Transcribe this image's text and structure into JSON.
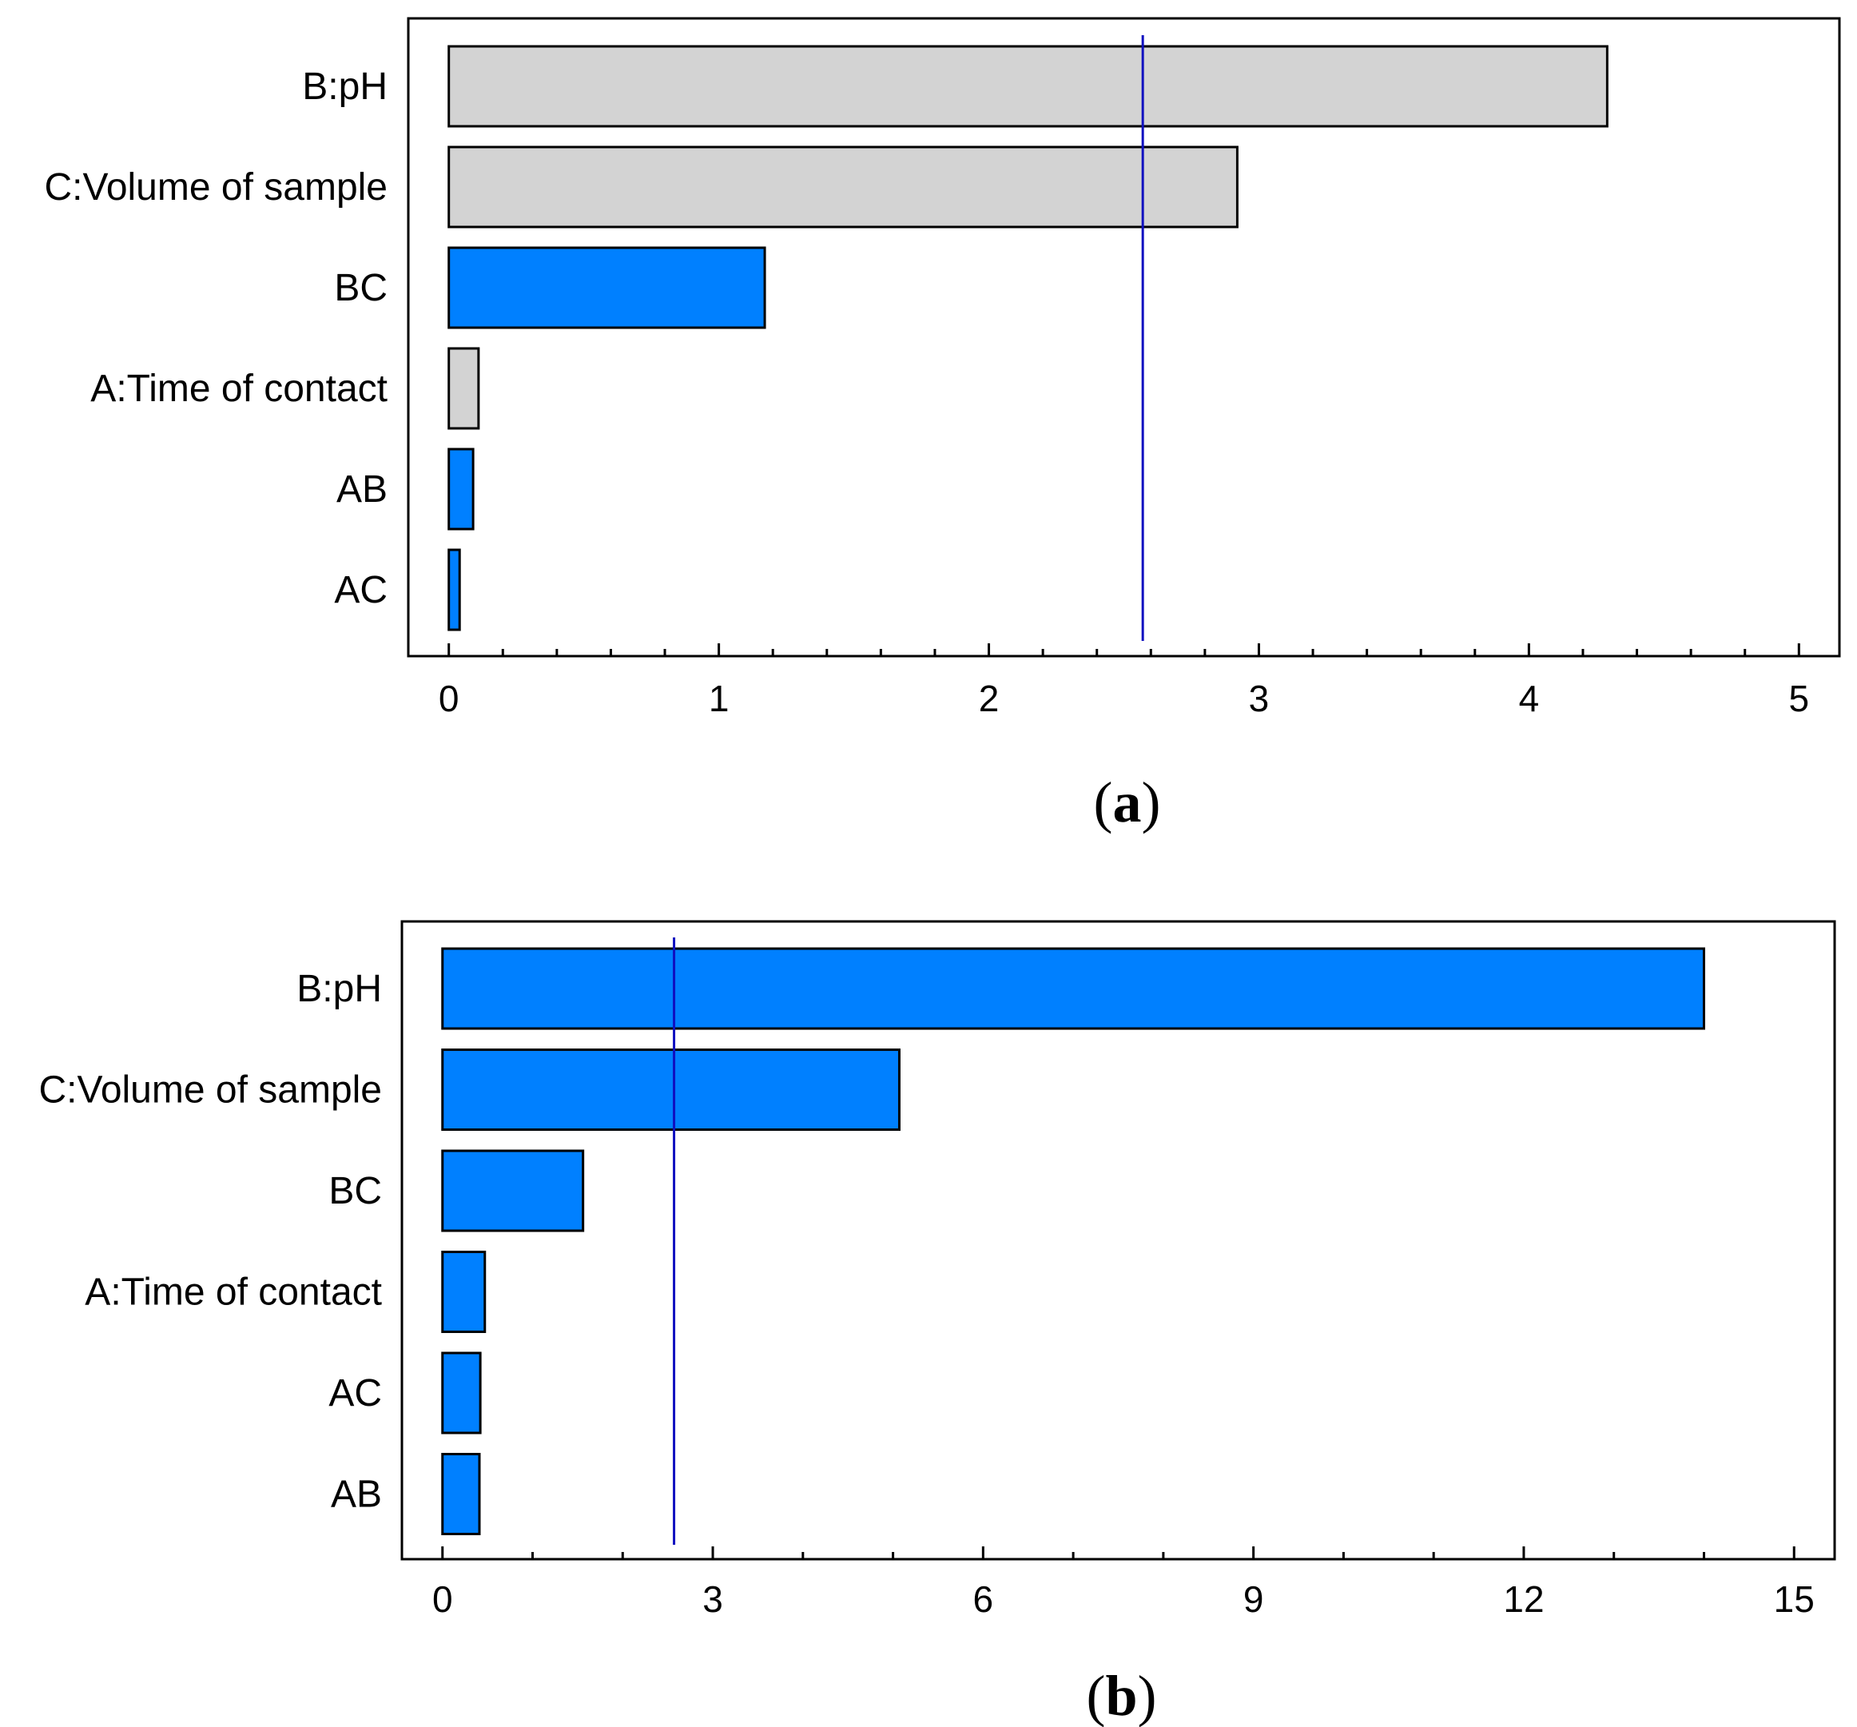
{
  "colors": {
    "positive": "#0080ff",
    "negative": "#d3d3d3",
    "reference_line": "#1010c0",
    "frame": "#000000"
  },
  "chart_data": [
    {
      "type": "bar",
      "orientation": "horizontal",
      "caption_letter": "a",
      "categories": [
        "B:pH",
        "C:Volume of sample",
        "BC",
        "A:Time of contact",
        "AB",
        "AC"
      ],
      "values": [
        4.29,
        2.92,
        1.17,
        0.11,
        0.09,
        0.04
      ],
      "signs": [
        "negative",
        "negative",
        "positive",
        "negative",
        "positive",
        "positive"
      ],
      "reference_value": 2.57,
      "xlim": [
        -0.15,
        5.15
      ],
      "xticks": [
        "0",
        "1",
        "2",
        "3",
        "4",
        "5"
      ],
      "minor_step": 0.2,
      "title": "",
      "xlabel": "",
      "ylabel": ""
    },
    {
      "type": "bar",
      "orientation": "horizontal",
      "caption_letter": "b",
      "categories": [
        "B:pH",
        "C:Volume of sample",
        "BC",
        "A:Time of contact",
        "AC",
        "AB"
      ],
      "values": [
        14.0,
        5.07,
        1.56,
        0.47,
        0.42,
        0.41
      ],
      "signs": [
        "positive",
        "positive",
        "positive",
        "positive",
        "positive",
        "positive"
      ],
      "reference_value": 2.57,
      "xlim": [
        -0.45,
        15.45
      ],
      "xticks": [
        "0",
        "3",
        "6",
        "9",
        "12",
        "15"
      ],
      "minor_step": 1,
      "title": "",
      "xlabel": "",
      "ylabel": ""
    }
  ]
}
